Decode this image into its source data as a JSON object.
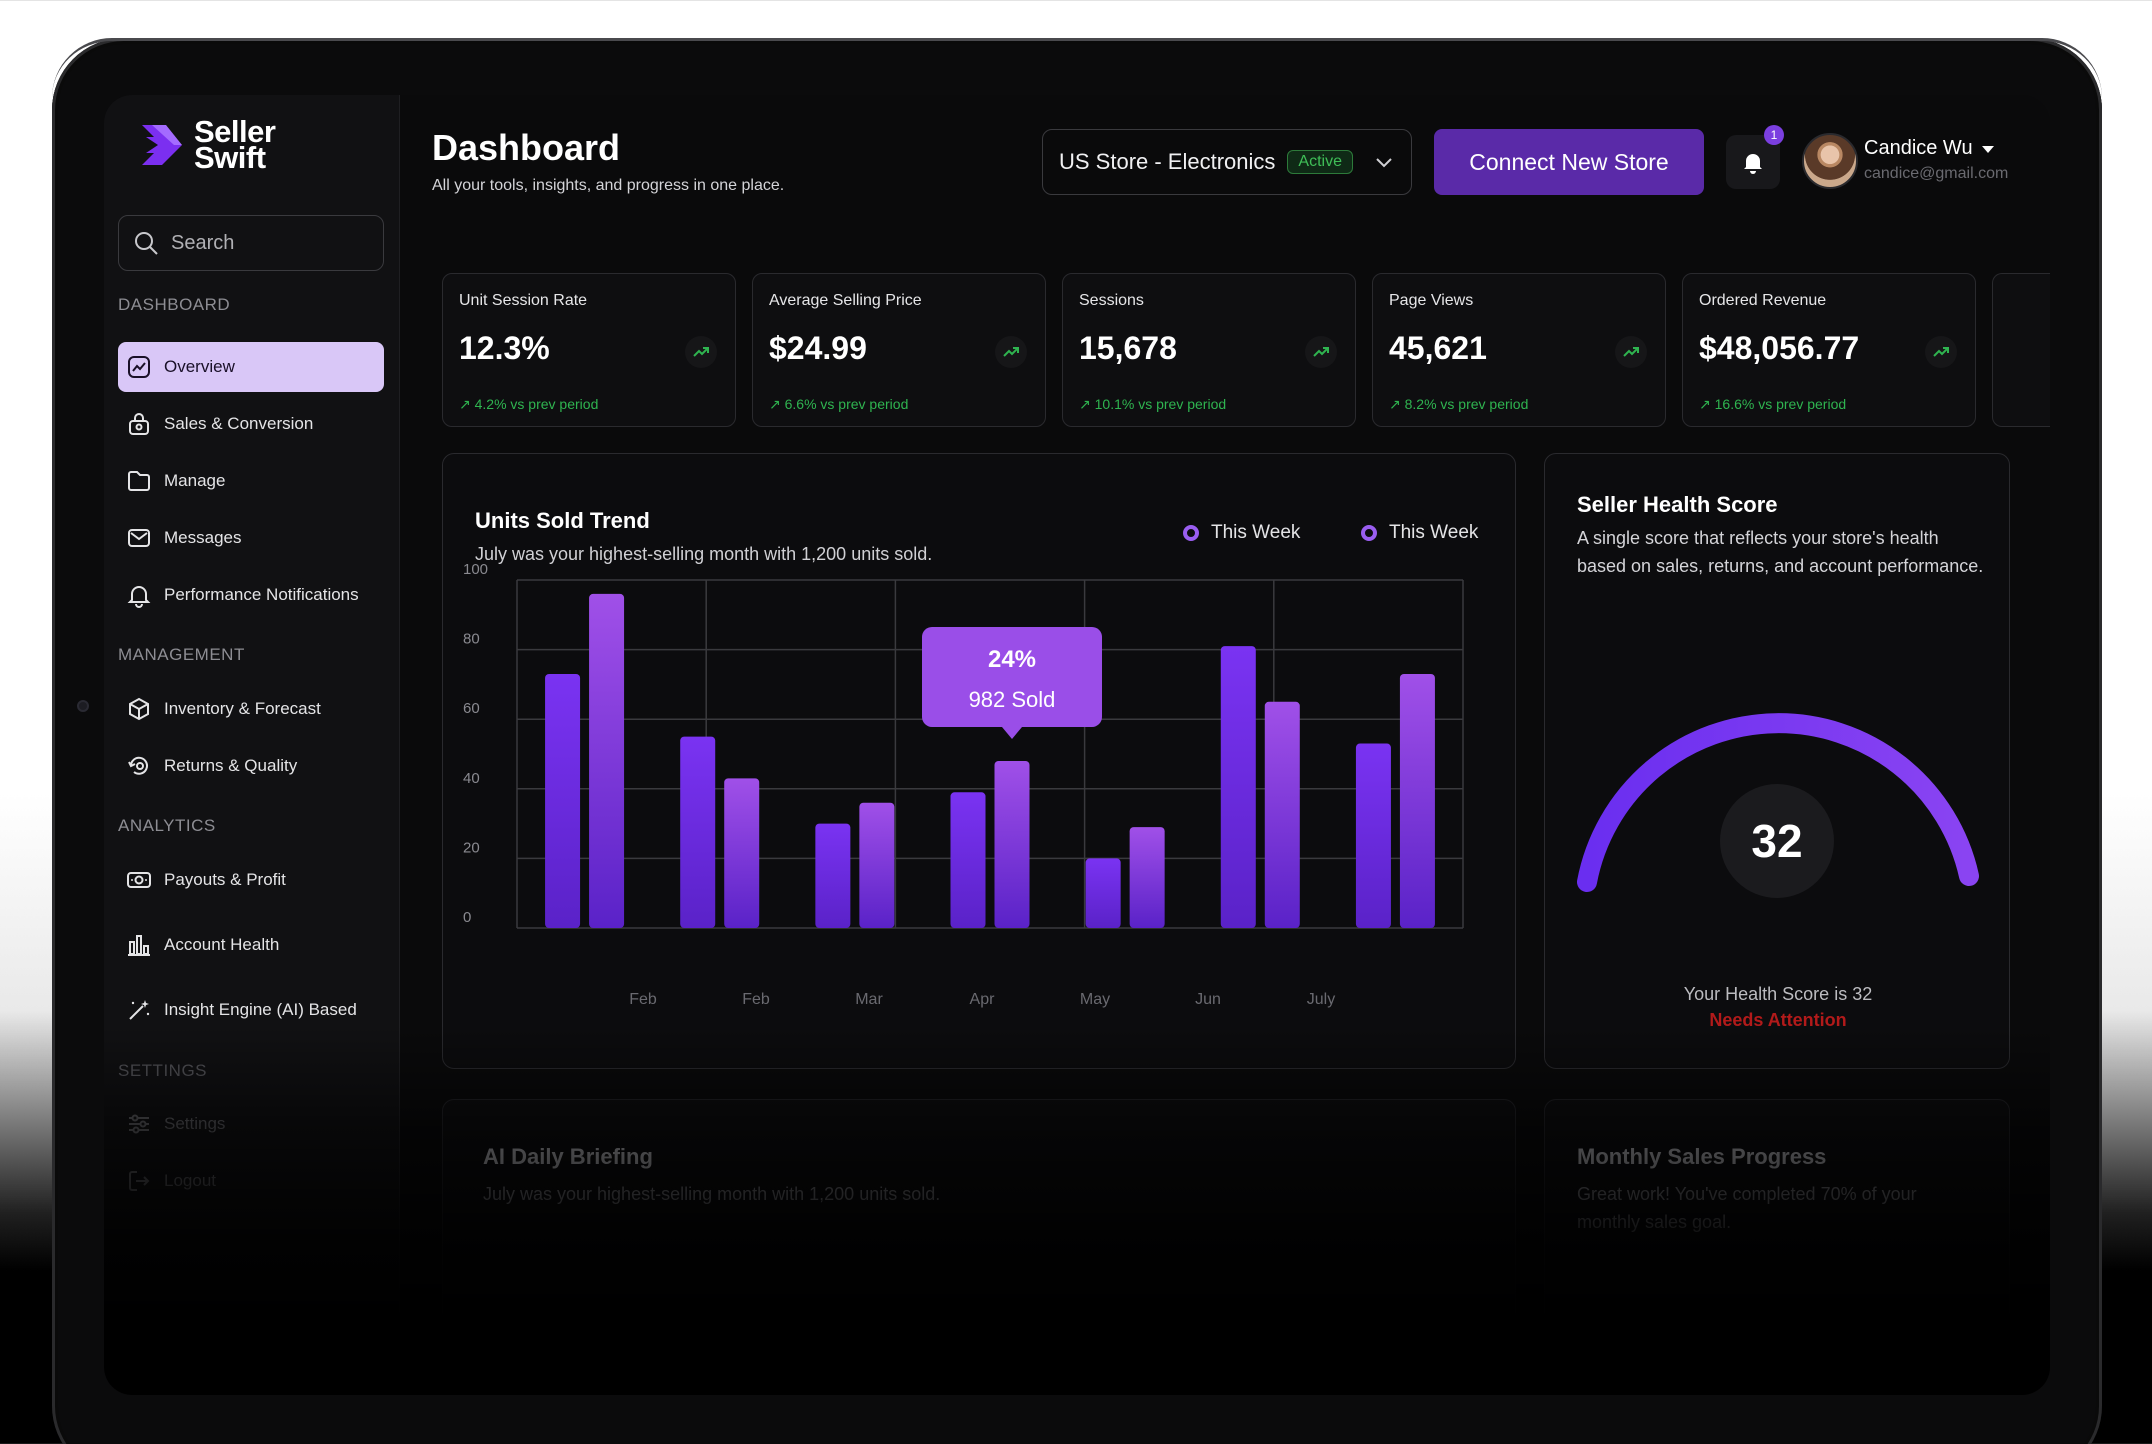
{
  "app": {
    "logo_line1": "Seller",
    "logo_line2": "Swift"
  },
  "colors": {
    "accent": "#7b3fe0",
    "accent_light": "#d9c7f7",
    "positive": "#2fb450",
    "danger": "#b21a1a"
  },
  "search": {
    "placeholder": "Search"
  },
  "sidebar": {
    "sections": [
      {
        "label": "DASHBOARD",
        "items": [
          {
            "label": "Overview",
            "icon": "trend-chart-icon",
            "active": true
          },
          {
            "label": "Sales & Conversion",
            "icon": "lock-bag-icon"
          },
          {
            "label": "Manage",
            "icon": "folder-icon"
          },
          {
            "label": "Messages",
            "icon": "mail-icon"
          },
          {
            "label": "Performance Notifications",
            "icon": "bell-icon"
          }
        ]
      },
      {
        "label": "MANAGEMENT",
        "items": [
          {
            "label": "Inventory & Forecast",
            "icon": "box-icon"
          },
          {
            "label": "Returns & Quality",
            "icon": "return-icon"
          }
        ]
      },
      {
        "label": "ANALYTICS",
        "items": [
          {
            "label": "Payouts & Profit",
            "icon": "money-icon"
          },
          {
            "label": "Account Health",
            "icon": "bar-chart-icon"
          },
          {
            "label": "Insight Engine (AI) Based",
            "icon": "magic-wand-icon"
          }
        ]
      },
      {
        "label": "SETTINGS",
        "items": [
          {
            "label": "Settings",
            "icon": "sliders-icon"
          },
          {
            "label": "Logout",
            "icon": "logout-icon"
          }
        ]
      }
    ]
  },
  "header": {
    "title": "Dashboard",
    "subtitle": "All your tools, insights, and progress in one place.",
    "store": {
      "name": "US Store - Electronics",
      "status": "Active"
    },
    "connect_label": "Connect New Store",
    "notification_count": "1",
    "user": {
      "name": "Candice Wu",
      "email": "candice@gmail.com"
    }
  },
  "kpis": [
    {
      "label": "Unit Session Rate",
      "value": "12.3%",
      "change": "↗ 4.2% vs  prev period"
    },
    {
      "label": "Average Selling Price",
      "value": "$24.99",
      "change": "↗ 6.6% vs prev period"
    },
    {
      "label": "Sessions",
      "value": "15,678",
      "change": "↗ 10.1% vs  prev period"
    },
    {
      "label": "Page Views",
      "value": "45,621",
      "change": "↗ 8.2%  vs prev period"
    },
    {
      "label": "Ordered Revenue",
      "value": "$48,056.77",
      "change": "↗ 16.6% vs  prev period"
    }
  ],
  "units_chart": {
    "title": "Units Sold Trend",
    "subtitle": "July was your highest-selling month with 1,200 units sold.",
    "legend": [
      "This Week",
      "This Week"
    ],
    "tooltip": {
      "percent": "24%",
      "sold": "982 Sold"
    }
  },
  "chart_data": {
    "type": "bar",
    "y_ticks": [
      "100",
      "80",
      "60",
      "40",
      "20",
      "0"
    ],
    "ylim": [
      0,
      100
    ],
    "x_tick_labels": [
      "Feb",
      "Feb",
      "Mar",
      "Apr",
      "May",
      "Jun",
      "July"
    ],
    "series": [
      {
        "name": "This Week",
        "values": [
          73,
          55,
          30,
          39,
          20,
          81,
          53
        ]
      },
      {
        "name": "This Week",
        "values": [
          96,
          43,
          36,
          48,
          29,
          65,
          73
        ]
      }
    ],
    "colors": [
      "#7a33f2",
      "#a050e8"
    ],
    "grid": true
  },
  "health": {
    "title": "Seller Health Score",
    "description": "A single score that reflects your store's health based on sales, returns, and account performance.",
    "score": "32",
    "score_text": "Your Health Score is 32",
    "status": "Needs Attention"
  },
  "briefing": {
    "title": "AI Daily Briefing",
    "subtitle": "July was your highest-selling month with 1,200 units sold."
  },
  "monthly": {
    "title": "Monthly Sales Progress",
    "subtitle": "Great work! You've completed 70% of your monthly sales goal."
  }
}
